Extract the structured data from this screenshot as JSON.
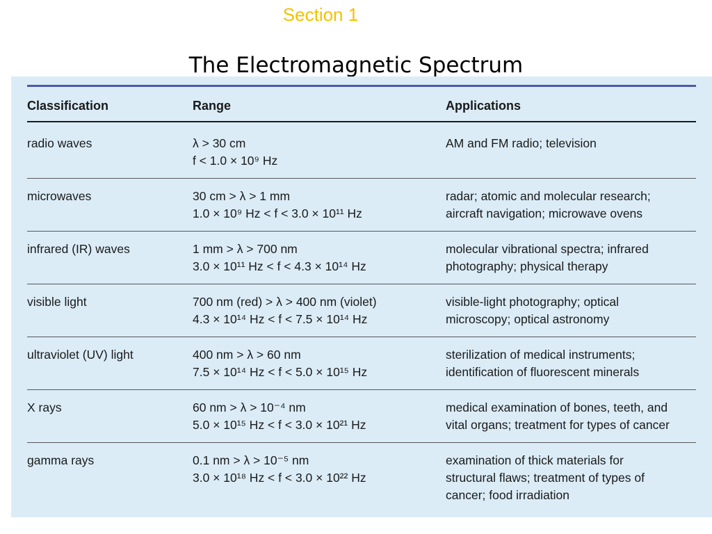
{
  "section_label": "Section 1",
  "title": "The Electromagnetic Spectrum",
  "table": {
    "headers": [
      "Classification",
      "Range",
      "Applications"
    ],
    "rows": [
      {
        "classification": "radio waves",
        "range": [
          "λ > 30 cm",
          "f < 1.0 × 10⁹ Hz"
        ],
        "applications": [
          "AM and FM radio; television"
        ]
      },
      {
        "classification": "microwaves",
        "range": [
          "30 cm > λ > 1 mm",
          "1.0 × 10⁹ Hz < f < 3.0 × 10¹¹ Hz"
        ],
        "applications": [
          "radar; atomic and molecular research;",
          "aircraft navigation; microwave ovens"
        ]
      },
      {
        "classification": "infrared (IR) waves",
        "range": [
          "1 mm > λ > 700 nm",
          "3.0 × 10¹¹ Hz < f < 4.3 × 10¹⁴ Hz"
        ],
        "applications": [
          "molecular vibrational spectra; infrared",
          "photography; physical therapy"
        ]
      },
      {
        "classification": "visible light",
        "range": [
          "700 nm (red) > λ > 400 nm (violet)",
          "4.3 × 10¹⁴ Hz < f < 7.5 × 10¹⁴ Hz"
        ],
        "applications": [
          "visible-light photography; optical",
          "microscopy; optical astronomy"
        ]
      },
      {
        "classification": "ultraviolet (UV) light",
        "range": [
          "400 nm > λ > 60 nm",
          "7.5 × 10¹⁴ Hz < f < 5.0 × 10¹⁵ Hz"
        ],
        "applications": [
          "sterilization of medical instruments;",
          "identification of fluorescent minerals"
        ]
      },
      {
        "classification": "X rays",
        "range": [
          "60 nm > λ > 10⁻⁴ nm",
          "5.0 × 10¹⁵ Hz < f < 3.0 × 10²¹ Hz"
        ],
        "applications": [
          "medical examination of bones, teeth, and",
          "vital organs; treatment for types of cancer"
        ]
      },
      {
        "classification": "gamma rays",
        "range": [
          "0.1 nm > λ > 10⁻⁵ nm",
          "3.0 × 10¹⁸ Hz < f < 3.0 × 10²² Hz"
        ],
        "applications": [
          "examination of thick materials for",
          "structural flaws; treatment of types of",
          "cancer; food irradiation"
        ]
      }
    ]
  },
  "colors": {
    "section_label": "#f2c200",
    "panel_background": "#dbecf7",
    "top_rule": "#4a5aa8"
  }
}
